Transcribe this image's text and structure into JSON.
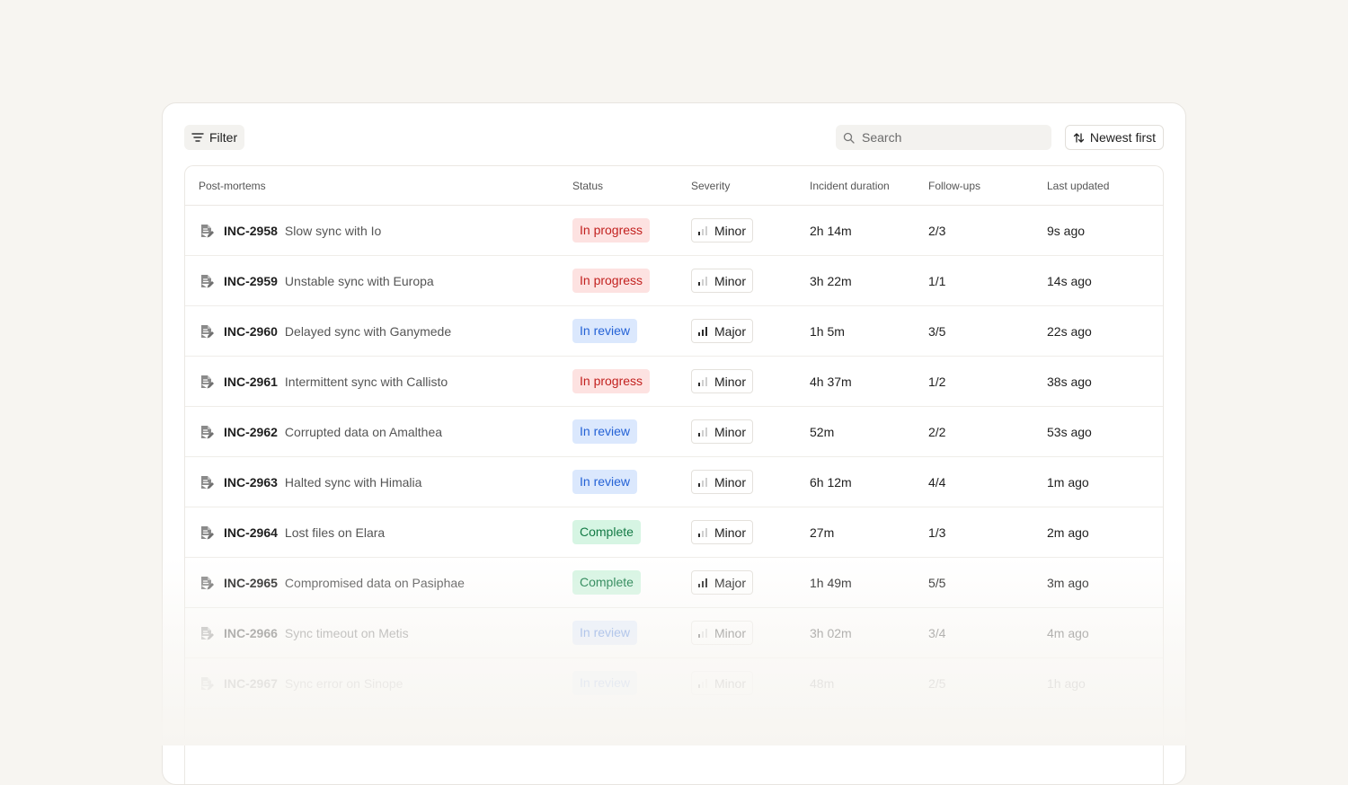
{
  "toolbar": {
    "filter_label": "Filter",
    "search_placeholder": "Search",
    "search_value": "",
    "sort_label": "Newest first"
  },
  "columns": {
    "post_mortems": "Post-mortems",
    "status": "Status",
    "severity": "Severity",
    "duration": "Incident duration",
    "follow_ups": "Follow-ups",
    "last_updated": "Last updated"
  },
  "status_colors": {
    "in_progress": {
      "bg": "#fde2e1",
      "fg": "#c2211f"
    },
    "in_review": {
      "bg": "#dbe8fd",
      "fg": "#2462d6"
    },
    "complete": {
      "bg": "#d6f5e3",
      "fg": "#137a45"
    }
  },
  "icons": {
    "row_icon": "document-edit-icon",
    "filter_icon": "filter-lines-icon",
    "search_icon": "search-icon",
    "sort_icon": "sort-arrows-icon",
    "severity_icon": "signal-bars-icon"
  },
  "rows": [
    {
      "id": "INC-2958",
      "title": "Slow sync with Io",
      "status": "In progress",
      "status_key": "in_progress",
      "severity": "Minor",
      "severity_key": "minor",
      "duration": "2h 14m",
      "follow_ups": "2/3",
      "updated": "9s ago"
    },
    {
      "id": "INC-2959",
      "title": "Unstable sync with Europa",
      "status": "In progress",
      "status_key": "in_progress",
      "severity": "Minor",
      "severity_key": "minor",
      "duration": "3h 22m",
      "follow_ups": "1/1",
      "updated": "14s ago"
    },
    {
      "id": "INC-2960",
      "title": "Delayed sync with Ganymede",
      "status": "In review",
      "status_key": "in_review",
      "severity": "Major",
      "severity_key": "major",
      "duration": "1h 5m",
      "follow_ups": "3/5",
      "updated": "22s ago"
    },
    {
      "id": "INC-2961",
      "title": "Intermittent sync with Callisto",
      "status": "In progress",
      "status_key": "in_progress",
      "severity": "Minor",
      "severity_key": "minor",
      "duration": "4h 37m",
      "follow_ups": "1/2",
      "updated": "38s ago"
    },
    {
      "id": "INC-2962",
      "title": "Corrupted data on Amalthea",
      "status": "In review",
      "status_key": "in_review",
      "severity": "Minor",
      "severity_key": "minor",
      "duration": "52m",
      "follow_ups": "2/2",
      "updated": "53s ago"
    },
    {
      "id": "INC-2963",
      "title": "Halted sync with Himalia",
      "status": "In review",
      "status_key": "in_review",
      "severity": "Minor",
      "severity_key": "minor",
      "duration": "6h 12m",
      "follow_ups": "4/4",
      "updated": "1m ago"
    },
    {
      "id": "INC-2964",
      "title": "Lost files on Elara",
      "status": "Complete",
      "status_key": "complete",
      "severity": "Minor",
      "severity_key": "minor",
      "duration": "27m",
      "follow_ups": "1/3",
      "updated": "2m ago"
    },
    {
      "id": "INC-2965",
      "title": "Compromised data on Pasiphae",
      "status": "Complete",
      "status_key": "complete",
      "severity": "Major",
      "severity_key": "major",
      "duration": "1h 49m",
      "follow_ups": "5/5",
      "updated": "3m ago"
    },
    {
      "id": "INC-2966",
      "title": "Sync timeout on Metis",
      "status": "In review",
      "status_key": "in_review",
      "severity": "Minor",
      "severity_key": "minor",
      "duration": "3h 02m",
      "follow_ups": "3/4",
      "updated": "4m ago"
    },
    {
      "id": "INC-2967",
      "title": "Sync error on Sinope",
      "status": "In review",
      "status_key": "in_review",
      "severity": "Minor",
      "severity_key": "minor",
      "duration": "48m",
      "follow_ups": "2/5",
      "updated": "1h ago"
    }
  ]
}
